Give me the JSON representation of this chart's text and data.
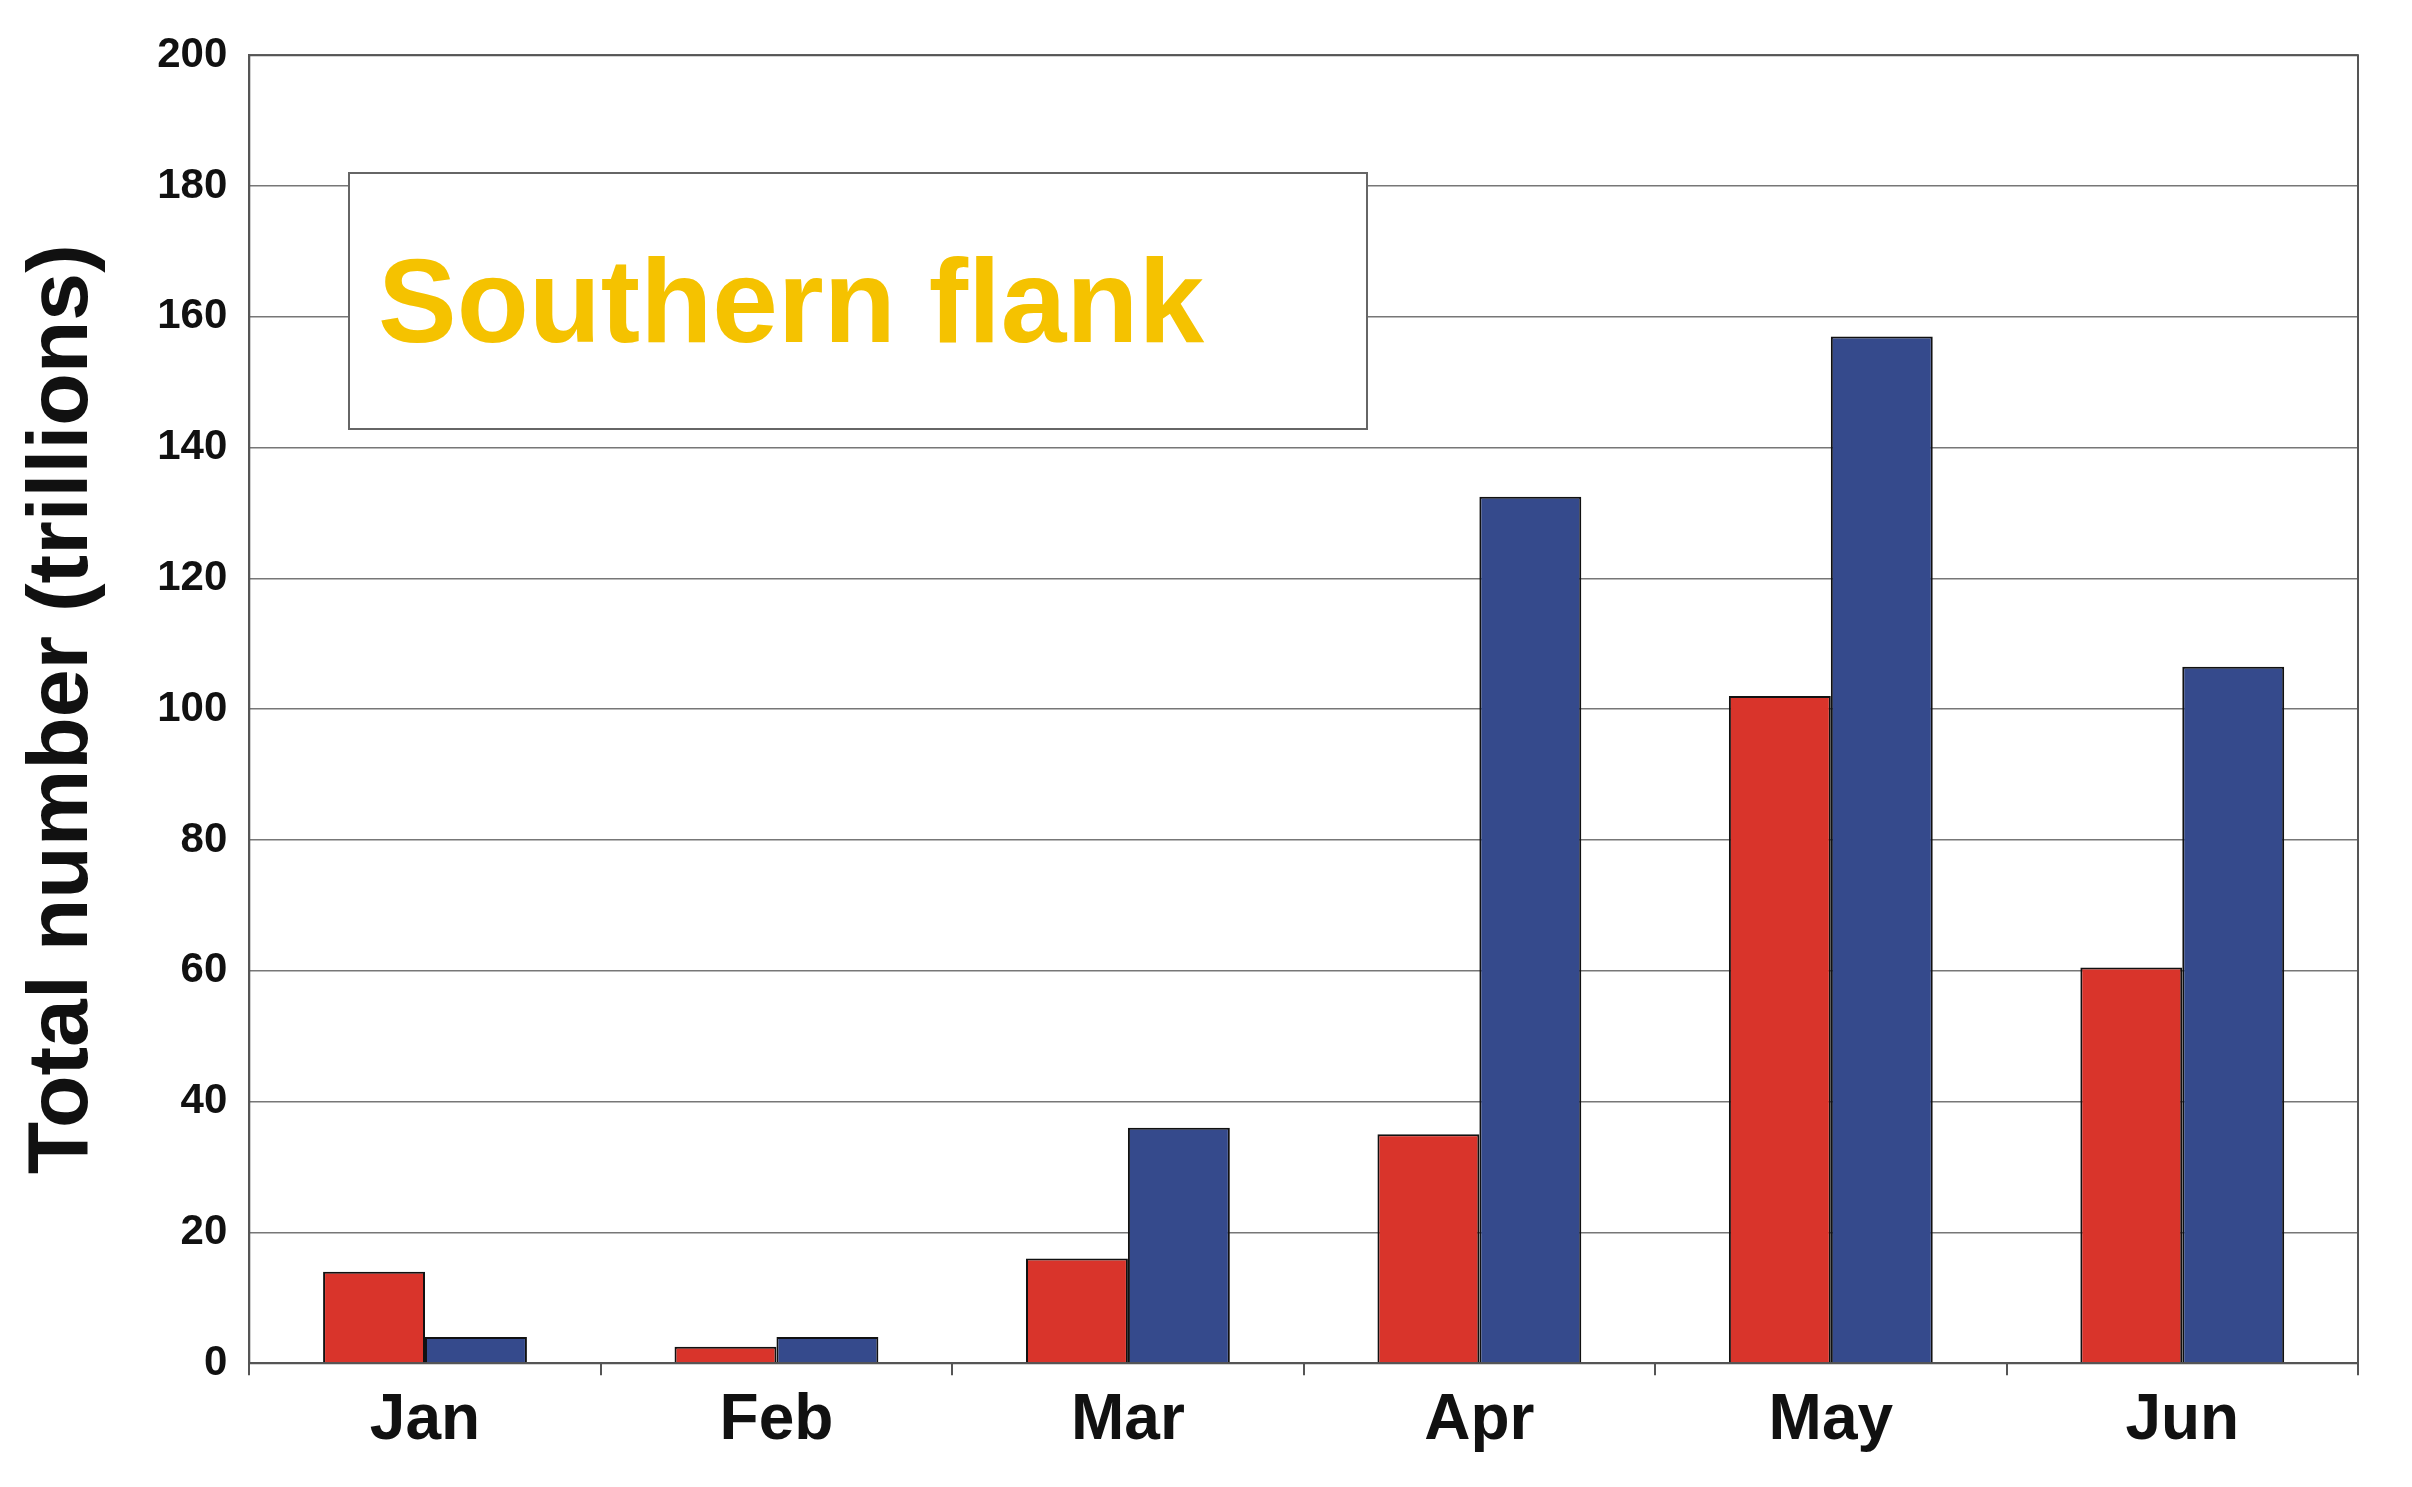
{
  "chart_data": {
    "type": "bar",
    "title": "Southern flank",
    "ylabel": "Total number (trillions)",
    "categories": [
      "Jan",
      "Feb",
      "Mar",
      "Apr",
      "May",
      "Jun"
    ],
    "series": [
      {
        "color": "#d9342b",
        "values": [
          14,
          2.5,
          16,
          35,
          102,
          60.5
        ]
      },
      {
        "color": "#354a8c",
        "values": [
          4,
          4,
          36,
          132.5,
          157,
          106.5
        ]
      }
    ],
    "ylim": [
      0,
      200
    ],
    "yticks": [
      0,
      20,
      40,
      60,
      80,
      100,
      120,
      140,
      160,
      180,
      200
    ],
    "grid": "y",
    "legend": false
  }
}
